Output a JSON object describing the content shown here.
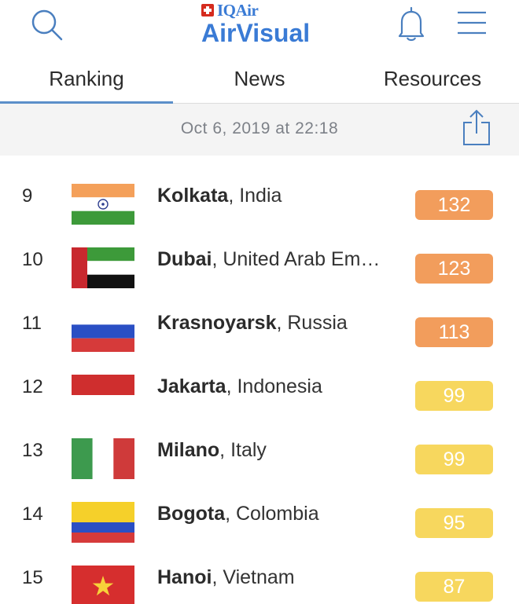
{
  "header": {
    "brand_top": "IQAir",
    "brand_main": "AirVisual",
    "icons": {
      "search": "search-icon",
      "bell": "bell-icon",
      "menu": "menu-icon",
      "swiss_cross": "swiss-cross-icon"
    },
    "brand_color": "#3a7bd5"
  },
  "tabs": [
    {
      "label": "Ranking",
      "active": true
    },
    {
      "label": "News",
      "active": false
    },
    {
      "label": "Resources",
      "active": false
    }
  ],
  "datebar": {
    "date": "Oct 6, 2019 at 22:18",
    "share_icon": "share-icon"
  },
  "aqi_colors": {
    "unhealthy_sensitive": "#f29d5c",
    "moderate": "#f7d75e"
  },
  "rankings": [
    {
      "rank": "9",
      "city": "Kolkata",
      "country": ", India",
      "aqi": "132",
      "level": "unhealthy_sensitive",
      "flag": "india"
    },
    {
      "rank": "10",
      "city": "Dubai",
      "country": ", United Arab Em…",
      "aqi": "123",
      "level": "unhealthy_sensitive",
      "flag": "uae"
    },
    {
      "rank": "11",
      "city": "Krasnoyarsk",
      "country": ", Russia",
      "aqi": "113",
      "level": "unhealthy_sensitive",
      "flag": "russia"
    },
    {
      "rank": "12",
      "city": "Jakarta",
      "country": ", Indonesia",
      "aqi": "99",
      "level": "moderate",
      "flag": "indonesia"
    },
    {
      "rank": "13",
      "city": "Milano",
      "country": ", Italy",
      "aqi": "99",
      "level": "moderate",
      "flag": "italy"
    },
    {
      "rank": "14",
      "city": "Bogota",
      "country": ", Colombia",
      "aqi": "95",
      "level": "moderate",
      "flag": "colombia"
    },
    {
      "rank": "15",
      "city": "Hanoi",
      "country": ", Vietnam",
      "aqi": "87",
      "level": "moderate",
      "flag": "vietnam"
    }
  ]
}
